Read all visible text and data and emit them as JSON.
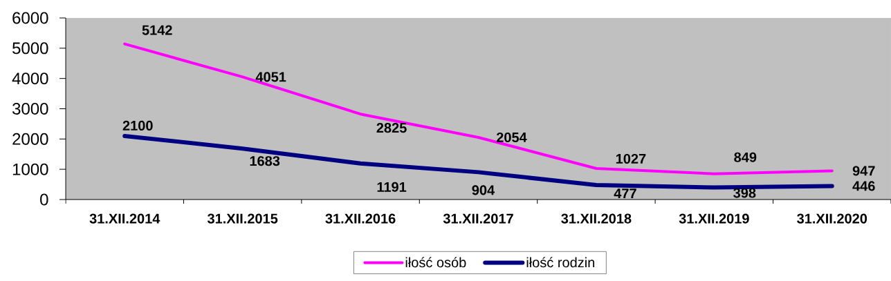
{
  "chart_data": {
    "type": "line",
    "categories": [
      "31.XII.2014",
      "31.XII.2015",
      "31.XII.2016",
      "31.XII.2017",
      "31.XII.2018",
      "31.XII.2019",
      "31.XII.2020"
    ],
    "series": [
      {
        "name": "iłość osób",
        "color": "#ff00ff",
        "values": [
          5142,
          4051,
          2825,
          2054,
          1027,
          849,
          947
        ]
      },
      {
        "name": "iłość rodzin",
        "color": "#000080",
        "values": [
          2100,
          1683,
          1191,
          904,
          477,
          398,
          446
        ]
      }
    ],
    "ylim": [
      0,
      6000
    ],
    "yticks": [
      0,
      1000,
      2000,
      3000,
      4000,
      5000,
      6000
    ],
    "data_labels": true,
    "legend": "bottom"
  }
}
